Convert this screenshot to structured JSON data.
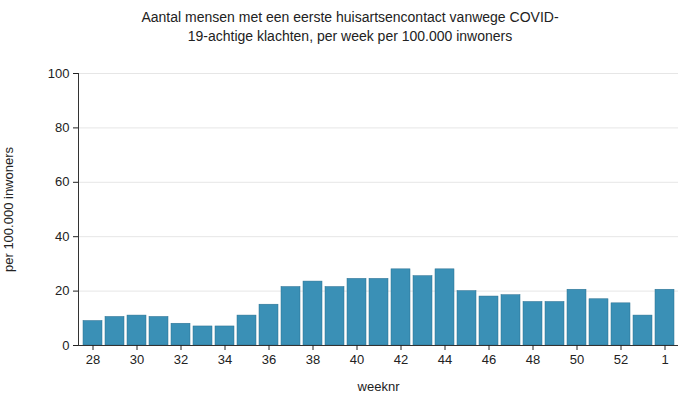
{
  "chart_data": {
    "type": "bar",
    "title": "Aantal mensen met een eerste huisartsencontact vanwege COVID-19-achtige klachten, per week per 100.000 inwoners",
    "x_label": "weeknr",
    "y_label": "per 100.000 inwoners",
    "categories": [
      "28",
      null,
      "30",
      null,
      "32",
      null,
      "34",
      null,
      "36",
      null,
      "38",
      null,
      "40",
      null,
      "42",
      null,
      "44",
      null,
      "46",
      null,
      "48",
      null,
      "50",
      null,
      "52",
      null,
      "1"
    ],
    "values": [
      9,
      10.5,
      11,
      10.5,
      8,
      7,
      7,
      11,
      15,
      21.5,
      23.5,
      21.5,
      24.5,
      24.5,
      28,
      25.5,
      28,
      20,
      18,
      18.5,
      16,
      16,
      20.5,
      17,
      15.5,
      11,
      20.5
    ],
    "color": "#3a90b6",
    "ylim": [
      0,
      100
    ],
    "yticks": [
      0,
      20,
      40,
      60,
      80,
      100
    ],
    "grid": true
  }
}
